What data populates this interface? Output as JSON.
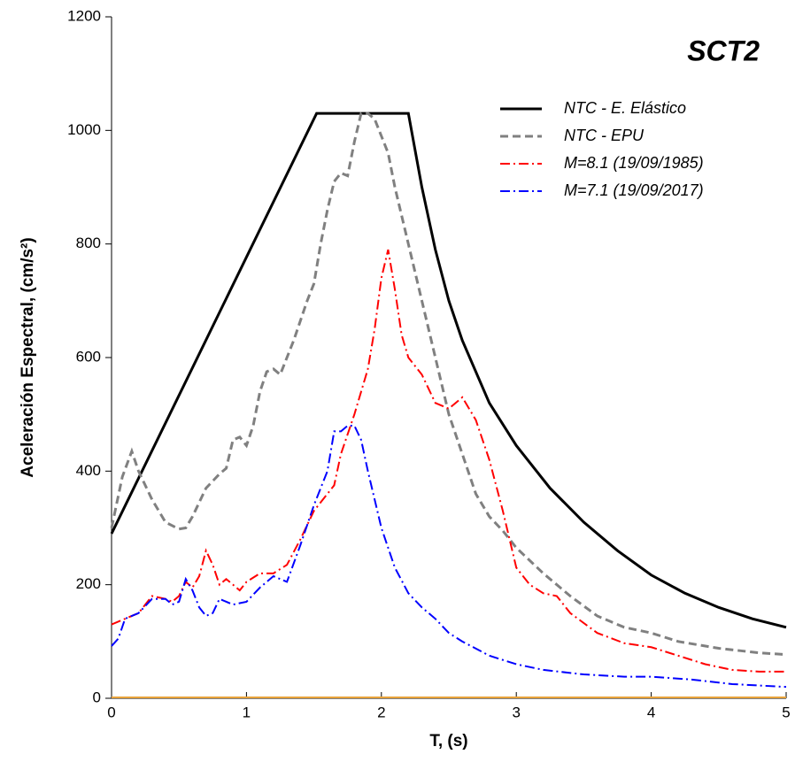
{
  "chart_data": {
    "type": "line",
    "title": "SCT2",
    "xlabel": "T, (s)",
    "ylabel": "Aceleración Espectral, (cm/s²)",
    "xlim": [
      0,
      5
    ],
    "ylim": [
      0,
      1200
    ],
    "xticks": [
      0,
      1,
      2,
      3,
      4,
      5
    ],
    "yticks": [
      0,
      200,
      400,
      600,
      800,
      1000,
      1200
    ],
    "series": [
      {
        "name": "NTC - E. Elástico",
        "color": "#000000",
        "style": "solid",
        "x": [
          0,
          1.52,
          2.2,
          2.3,
          2.4,
          2.5,
          2.6,
          2.8,
          3.0,
          3.25,
          3.5,
          3.75,
          4.0,
          4.25,
          4.5,
          4.75,
          5.0
        ],
        "values": [
          290,
          1030,
          1030,
          900,
          790,
          700,
          630,
          520,
          445,
          370,
          310,
          260,
          217,
          185,
          160,
          140,
          125
        ]
      },
      {
        "name": "NTC - EPU",
        "color": "#808080",
        "style": "dashed",
        "x": [
          0,
          0.08,
          0.15,
          0.2,
          0.3,
          0.4,
          0.5,
          0.55,
          0.6,
          0.7,
          0.8,
          0.85,
          0.9,
          0.95,
          1.0,
          1.05,
          1.1,
          1.15,
          1.2,
          1.25,
          1.35,
          1.45,
          1.5,
          1.55,
          1.6,
          1.65,
          1.7,
          1.75,
          1.8,
          1.85,
          1.9,
          1.95,
          2.0,
          2.05,
          2.1,
          2.2,
          2.3,
          2.4,
          2.5,
          2.6,
          2.7,
          2.8,
          2.9,
          3.0,
          3.2,
          3.4,
          3.6,
          3.8,
          4.0,
          4.2,
          4.5,
          4.8,
          5.0
        ],
        "values": [
          300,
          390,
          435,
          400,
          350,
          310,
          298,
          300,
          320,
          370,
          395,
          405,
          455,
          460,
          445,
          480,
          540,
          575,
          580,
          570,
          630,
          700,
          730,
          800,
          860,
          910,
          925,
          920,
          980,
          1030,
          1030,
          1020,
          990,
          960,
          900,
          800,
          700,
          600,
          500,
          430,
          360,
          320,
          295,
          265,
          220,
          180,
          145,
          125,
          115,
          100,
          88,
          80,
          77
        ]
      },
      {
        "name": "M=8.1 (19/09/1985)",
        "color": "#ff0000",
        "style": "dashdot",
        "x": [
          0,
          0.1,
          0.2,
          0.3,
          0.4,
          0.45,
          0.5,
          0.55,
          0.6,
          0.65,
          0.7,
          0.75,
          0.8,
          0.85,
          0.9,
          0.95,
          1.0,
          1.1,
          1.2,
          1.3,
          1.4,
          1.5,
          1.6,
          1.65,
          1.7,
          1.8,
          1.9,
          1.95,
          2.0,
          2.05,
          2.1,
          2.15,
          2.2,
          2.3,
          2.4,
          2.5,
          2.6,
          2.7,
          2.8,
          2.9,
          3.0,
          3.1,
          3.2,
          3.3,
          3.4,
          3.6,
          3.8,
          4.0,
          4.2,
          4.4,
          4.6,
          4.8,
          5.0
        ],
        "values": [
          130,
          140,
          150,
          180,
          175,
          170,
          180,
          205,
          195,
          215,
          260,
          235,
          200,
          210,
          200,
          190,
          205,
          220,
          220,
          235,
          280,
          330,
          360,
          375,
          430,
          500,
          580,
          650,
          740,
          790,
          720,
          640,
          600,
          570,
          520,
          510,
          530,
          490,
          420,
          330,
          230,
          200,
          185,
          180,
          150,
          115,
          97,
          90,
          75,
          60,
          50,
          47,
          47
        ]
      },
      {
        "name": "M=7.1 (19/09/2017)",
        "color": "#0000ff",
        "style": "dashdot",
        "x": [
          0,
          0.05,
          0.1,
          0.2,
          0.3,
          0.4,
          0.45,
          0.5,
          0.55,
          0.6,
          0.65,
          0.7,
          0.75,
          0.8,
          0.9,
          1.0,
          1.1,
          1.2,
          1.3,
          1.4,
          1.5,
          1.6,
          1.65,
          1.7,
          1.75,
          1.8,
          1.85,
          1.9,
          1.95,
          2.0,
          2.1,
          2.2,
          2.3,
          2.4,
          2.5,
          2.6,
          2.8,
          3.0,
          3.2,
          3.5,
          3.8,
          4.0,
          4.3,
          4.6,
          5.0
        ],
        "values": [
          92,
          105,
          140,
          150,
          175,
          175,
          165,
          170,
          210,
          190,
          160,
          145,
          150,
          175,
          165,
          170,
          195,
          215,
          205,
          270,
          340,
          400,
          470,
          470,
          480,
          480,
          455,
          400,
          350,
          300,
          230,
          185,
          160,
          140,
          115,
          100,
          75,
          60,
          50,
          42,
          38,
          38,
          33,
          25,
          20
        ]
      }
    ]
  }
}
